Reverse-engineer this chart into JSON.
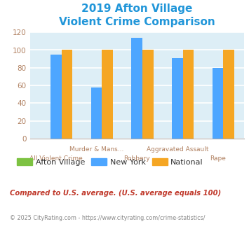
{
  "title_line1": "2019 Afton Village",
  "title_line2": "Violent Crime Comparison",
  "title_color": "#2196d9",
  "categories": [
    "All Violent Crime",
    "Murder & Mans...",
    "Robbery",
    "Aggravated Assault",
    "Rape"
  ],
  "afton_village": [
    0,
    0,
    0,
    0,
    0
  ],
  "new_york": [
    95,
    58,
    114,
    91,
    80
  ],
  "national": [
    100,
    100,
    100,
    100,
    100
  ],
  "color_afton": "#7dc242",
  "color_ny": "#4da6ff",
  "color_national": "#f5a623",
  "ylim": [
    0,
    120
  ],
  "yticks": [
    0,
    20,
    40,
    60,
    80,
    100,
    120
  ],
  "bg_color": "#ddeef6",
  "grid_color": "#ffffff",
  "legend_labels": [
    "Afton Village",
    "New York",
    "National"
  ],
  "footnote1": "Compared to U.S. average. (U.S. average equals 100)",
  "footnote2": "© 2025 CityRating.com - https://www.cityrating.com/crime-statistics/",
  "footnote1_color": "#c0392b",
  "footnote2_color": "#888888",
  "tick_label_color_top": "#b08060",
  "tick_label_color_bot": "#b08060",
  "ytick_color": "#b08060"
}
